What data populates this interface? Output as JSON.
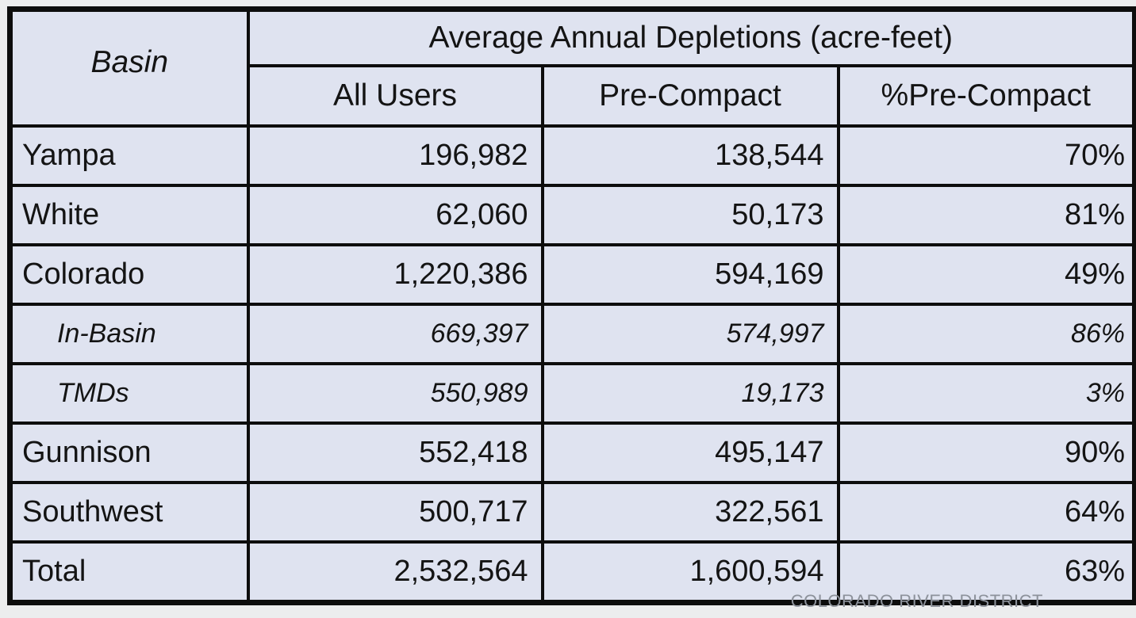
{
  "table": {
    "header": {
      "basin_label": "Basin",
      "group_label": "Average Annual Depletions (acre-feet)",
      "columns": [
        "All Users",
        "Pre-Compact",
        "%Pre-Compact"
      ]
    },
    "rows": [
      {
        "basin": "Yampa",
        "all_users": "196,982",
        "pre_compact": "138,544",
        "pct_pre_compact": "70%"
      },
      {
        "basin": "White",
        "all_users": "62,060",
        "pre_compact": "50,173",
        "pct_pre_compact": "81%"
      },
      {
        "basin": "Colorado",
        "all_users": "1,220,386",
        "pre_compact": "594,169",
        "pct_pre_compact": "49%"
      },
      {
        "basin": "In-Basin",
        "all_users": "669,397",
        "pre_compact": "574,997",
        "pct_pre_compact": "86%"
      },
      {
        "basin": "TMDs",
        "all_users": "550,989",
        "pre_compact": "19,173",
        "pct_pre_compact": "3%"
      },
      {
        "basin": "Gunnison",
        "all_users": "552,418",
        "pre_compact": "495,147",
        "pct_pre_compact": "90%"
      },
      {
        "basin": "Southwest",
        "all_users": "500,717",
        "pre_compact": "322,561",
        "pct_pre_compact": "64%"
      },
      {
        "basin": "Total",
        "all_users": "2,532,564",
        "pre_compact": "1,600,594",
        "pct_pre_compact": "63%"
      }
    ]
  },
  "footer": {
    "attribution": "COLORADO RIVER DISTRICT"
  },
  "colors": {
    "cell_background": "#dfe3f0",
    "page_background": "#ecedee",
    "border": "#0d0d0d",
    "attribution_text": "#8d929b"
  }
}
